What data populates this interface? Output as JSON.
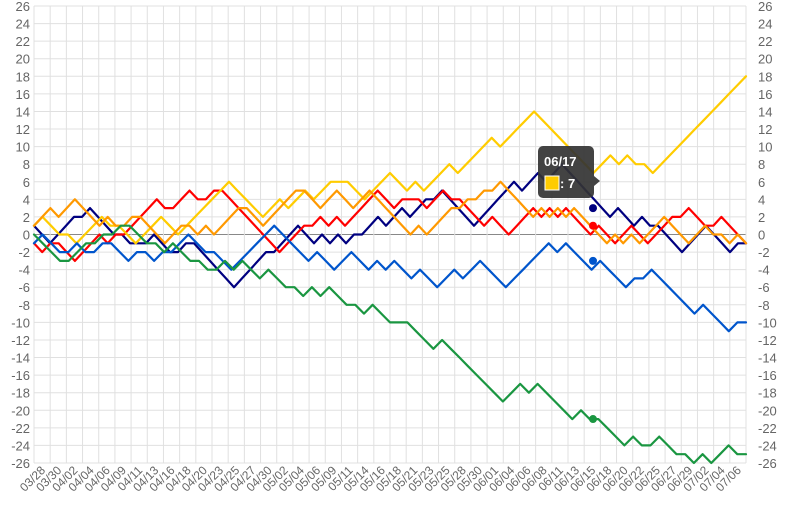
{
  "chart_data": {
    "type": "line",
    "title": "",
    "xlabel": "",
    "ylabel": "",
    "ylim": [
      -26,
      26
    ],
    "y_ticks": [
      26,
      24,
      22,
      20,
      18,
      16,
      14,
      12,
      10,
      8,
      6,
      4,
      2,
      0,
      -2,
      -4,
      -6,
      -8,
      -10,
      -12,
      -14,
      -16,
      -18,
      -20,
      -22,
      -24,
      -26
    ],
    "y_axis_both_sides": true,
    "grid": true,
    "legend": "none",
    "x_tick_labels": [
      "03/28",
      "03/30",
      "04/02",
      "04/04",
      "04/06",
      "04/09",
      "04/11",
      "04/13",
      "04/16",
      "04/18",
      "04/20",
      "04/23",
      "04/25",
      "04/27",
      "04/30",
      "05/02",
      "05/04",
      "05/06",
      "05/09",
      "05/11",
      "05/14",
      "05/16",
      "05/18",
      "05/21",
      "05/23",
      "05/25",
      "05/28",
      "05/30",
      "06/01",
      "06/04",
      "06/06",
      "06/08",
      "06/11",
      "06/13",
      "06/15",
      "06/18",
      "06/20",
      "06/22",
      "06/25",
      "06/27",
      "06/29",
      "07/02",
      "07/04",
      "07/06"
    ],
    "series": [
      {
        "color": "#000080",
        "values": [
          1,
          0,
          -1,
          0,
          1,
          2,
          2,
          3,
          2,
          1,
          0,
          0,
          -1,
          -1,
          -1,
          0,
          -1,
          -2,
          -2,
          -1,
          -1,
          -2,
          -3,
          -4,
          -5,
          -6,
          -5,
          -4,
          -3,
          -2,
          -2,
          -1,
          0,
          1,
          0,
          -1,
          0,
          -1,
          0,
          -1,
          0,
          0,
          1,
          2,
          1,
          2,
          3,
          2,
          3,
          4,
          4,
          5,
          4,
          3,
          2,
          1,
          2,
          3,
          4,
          5,
          6,
          5,
          6,
          7,
          6,
          7,
          8,
          7,
          6,
          5,
          4,
          3,
          2,
          3,
          2,
          1,
          2,
          1,
          1,
          0,
          -1,
          -2,
          -1,
          0,
          1,
          0,
          -1,
          -2,
          -1,
          -1
        ]
      },
      {
        "color": "#ff0000",
        "values": [
          -1,
          -2,
          -1,
          -1,
          -2,
          -3,
          -2,
          -1,
          0,
          -1,
          0,
          0,
          1,
          2,
          3,
          4,
          3,
          3,
          4,
          5,
          4,
          4,
          5,
          5,
          4,
          3,
          2,
          1,
          0,
          -1,
          -2,
          -1,
          0,
          1,
          1,
          2,
          1,
          2,
          1,
          2,
          3,
          4,
          5,
          4,
          3,
          4,
          4,
          4,
          3,
          4,
          5,
          4,
          4,
          3,
          2,
          1,
          2,
          1,
          0,
          1,
          2,
          3,
          2,
          3,
          2,
          3,
          2,
          1,
          0,
          1,
          0,
          -1,
          0,
          1,
          0,
          -1,
          0,
          1,
          2,
          2,
          3,
          2,
          1,
          1,
          2,
          1,
          0,
          -1
        ]
      },
      {
        "color": "#ffcc00",
        "values": [
          1,
          2,
          1,
          0,
          0,
          -1,
          0,
          1,
          2,
          1,
          1,
          0,
          -1,
          0,
          1,
          2,
          1,
          0,
          1,
          2,
          3,
          4,
          5,
          6,
          5,
          4,
          3,
          2,
          3,
          4,
          3,
          4,
          5,
          4,
          5,
          6,
          6,
          6,
          5,
          4,
          5,
          6,
          7,
          6,
          5,
          6,
          5,
          6,
          7,
          8,
          7,
          8,
          9,
          10,
          11,
          10,
          11,
          12,
          13,
          14,
          13,
          12,
          11,
          10,
          9,
          8,
          7,
          8,
          9,
          8,
          9,
          8,
          8,
          7,
          8,
          9,
          10,
          11,
          12,
          13,
          14,
          15,
          16,
          17,
          18
        ]
      },
      {
        "color": "#ff9900",
        "values": [
          1,
          2,
          3,
          2,
          3,
          4,
          3,
          2,
          1,
          2,
          1,
          1,
          2,
          2,
          1,
          0,
          -1,
          0,
          1,
          1,
          0,
          1,
          0,
          1,
          2,
          3,
          3,
          2,
          1,
          2,
          3,
          4,
          5,
          5,
          4,
          3,
          4,
          5,
          4,
          3,
          4,
          5,
          4,
          3,
          2,
          1,
          0,
          1,
          0,
          1,
          2,
          3,
          3,
          4,
          4,
          5,
          5,
          6,
          5,
          4,
          3,
          2,
          3,
          2,
          3,
          2,
          3,
          2,
          1,
          0,
          -1,
          0,
          -1,
          0,
          -1,
          0,
          1,
          2,
          1,
          0,
          -1,
          0,
          1,
          0,
          0,
          -1,
          0,
          -1
        ]
      },
      {
        "color": "#0055cc",
        "values": [
          -1,
          0,
          -1,
          -2,
          -2,
          -1,
          -2,
          -2,
          -1,
          -1,
          -2,
          -3,
          -2,
          -2,
          -3,
          -2,
          -2,
          -1,
          0,
          -1,
          -2,
          -2,
          -3,
          -4,
          -3,
          -2,
          -1,
          0,
          1,
          0,
          -1,
          -2,
          -3,
          -2,
          -3,
          -4,
          -3,
          -2,
          -3,
          -4,
          -3,
          -4,
          -3,
          -4,
          -5,
          -4,
          -5,
          -6,
          -5,
          -4,
          -5,
          -4,
          -3,
          -4,
          -5,
          -6,
          -5,
          -4,
          -3,
          -2,
          -1,
          -2,
          -1,
          -2,
          -3,
          -4,
          -3,
          -4,
          -5,
          -6,
          -5,
          -5,
          -4,
          -5,
          -6,
          -7,
          -8,
          -9,
          -8,
          -9,
          -10,
          -11,
          -10,
          -10
        ]
      },
      {
        "color": "#1a9641",
        "values": [
          0,
          -1,
          -2,
          -3,
          -3,
          -2,
          -1,
          -1,
          0,
          0,
          1,
          1,
          0,
          -1,
          -1,
          -2,
          -1,
          -2,
          -3,
          -3,
          -4,
          -4,
          -3,
          -4,
          -3,
          -4,
          -5,
          -4,
          -5,
          -6,
          -6,
          -7,
          -6,
          -7,
          -6,
          -7,
          -8,
          -8,
          -9,
          -8,
          -9,
          -10,
          -10,
          -10,
          -11,
          -12,
          -13,
          -12,
          -13,
          -14,
          -15,
          -16,
          -17,
          -18,
          -19,
          -18,
          -17,
          -18,
          -17,
          -18,
          -19,
          -20,
          -21,
          -20,
          -21,
          -21,
          -22,
          -23,
          -24,
          -23,
          -24,
          -24,
          -23,
          -24,
          -25,
          -25,
          -26,
          -25,
          -26,
          -25,
          -24,
          -25,
          -25
        ]
      }
    ],
    "tooltip": {
      "title": "06/17",
      "swatch_color": "#ffcc00",
      "value_text": ": 7"
    },
    "highlight_markers": [
      {
        "series": 0,
        "value": 3
      },
      {
        "series": 1,
        "value": 1
      },
      {
        "series": 4,
        "value": -3
      },
      {
        "series": 5,
        "value": -21
      }
    ]
  }
}
